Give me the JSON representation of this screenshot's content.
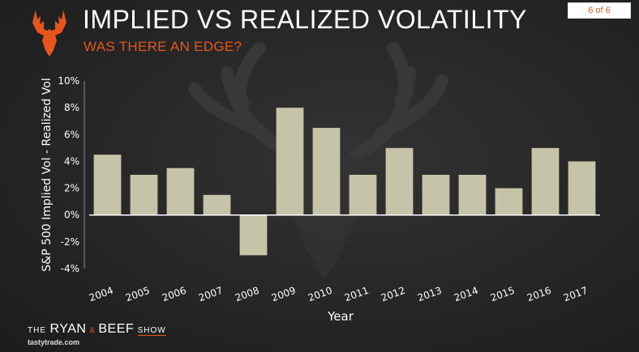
{
  "header": {
    "title": "IMPLIED VS REALIZED VOLATILITY",
    "subtitle": "WAS THERE AN EDGE?",
    "page_indicator": "6 of 6"
  },
  "brand": {
    "the": "THE",
    "ryan": "RYAN",
    "amp": "&",
    "beef": "BEEF",
    "show": "SHOW",
    "site": "tastytrade.com"
  },
  "colors": {
    "accent": "#e8551c",
    "bar": "#c6c4a8",
    "axis": "#ffffff",
    "background": "#262626"
  },
  "chart_data": {
    "type": "bar",
    "title": "",
    "xlabel": "Year",
    "ylabel": "S&P 500 Implied Vol - Realized Vol",
    "categories": [
      "2004",
      "2005",
      "2006",
      "2007",
      "2008",
      "2009",
      "2010",
      "2011",
      "2012",
      "2013",
      "2014",
      "2015",
      "2016",
      "2017"
    ],
    "values": [
      4.5,
      3,
      3.5,
      1.5,
      -3,
      8,
      6.5,
      3,
      5,
      3,
      3,
      2,
      5,
      4
    ],
    "ylim": [
      -4,
      10
    ],
    "yticks": [
      "10%",
      "8%",
      "6%",
      "4%",
      "2%",
      "0%",
      "-2%",
      "-4%"
    ],
    "ytick_values": [
      10,
      8,
      6,
      4,
      2,
      0,
      -2,
      -4
    ],
    "unit": "%",
    "grid": false,
    "legend": "none"
  }
}
